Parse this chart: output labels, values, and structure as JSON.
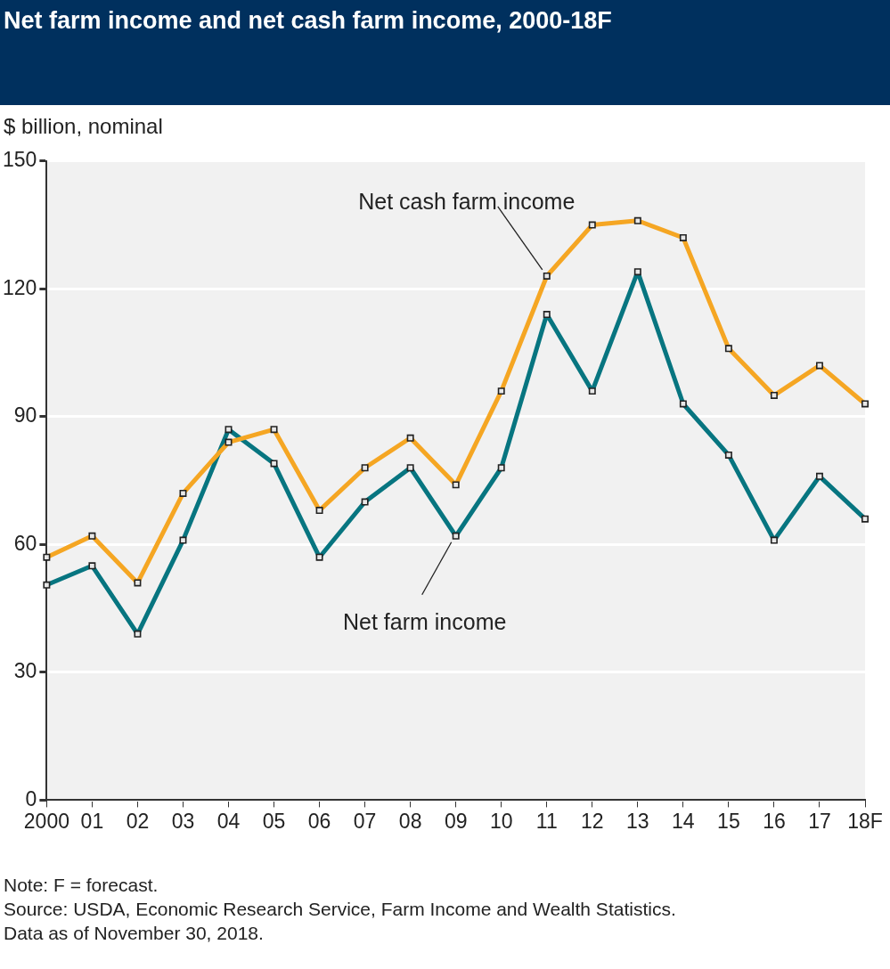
{
  "chart_data": {
    "type": "line",
    "title": "Net farm income and net cash farm income, 2000-18F",
    "ylabel": "$ billion, nominal",
    "categories": [
      "2000",
      "01",
      "02",
      "03",
      "04",
      "05",
      "06",
      "07",
      "08",
      "09",
      "10",
      "11",
      "12",
      "13",
      "14",
      "15",
      "16",
      "17",
      "18F"
    ],
    "series": [
      {
        "name": "Net cash farm income",
        "color": "#f5a623",
        "values": [
          57,
          62,
          51,
          72,
          84,
          87,
          68,
          78,
          85,
          74,
          96,
          123,
          135,
          136,
          132,
          106,
          95,
          102,
          93
        ]
      },
      {
        "name": "Net farm income",
        "color": "#077580",
        "values": [
          50.5,
          55,
          39,
          61,
          87,
          79,
          57,
          70,
          78,
          62,
          78,
          114,
          96,
          124,
          93,
          81,
          61,
          76,
          66
        ]
      }
    ],
    "ylim": [
      0,
      150
    ],
    "yticks": [
      0,
      30,
      60,
      90,
      120,
      150
    ],
    "grid": "y",
    "marker": "square",
    "line_style": "solid",
    "annotations": [
      "Note: F = forecast.",
      "Source: USDA, Economic Research Service, Farm Income and Wealth Statistics.",
      "Data as of November 30, 2018."
    ]
  }
}
